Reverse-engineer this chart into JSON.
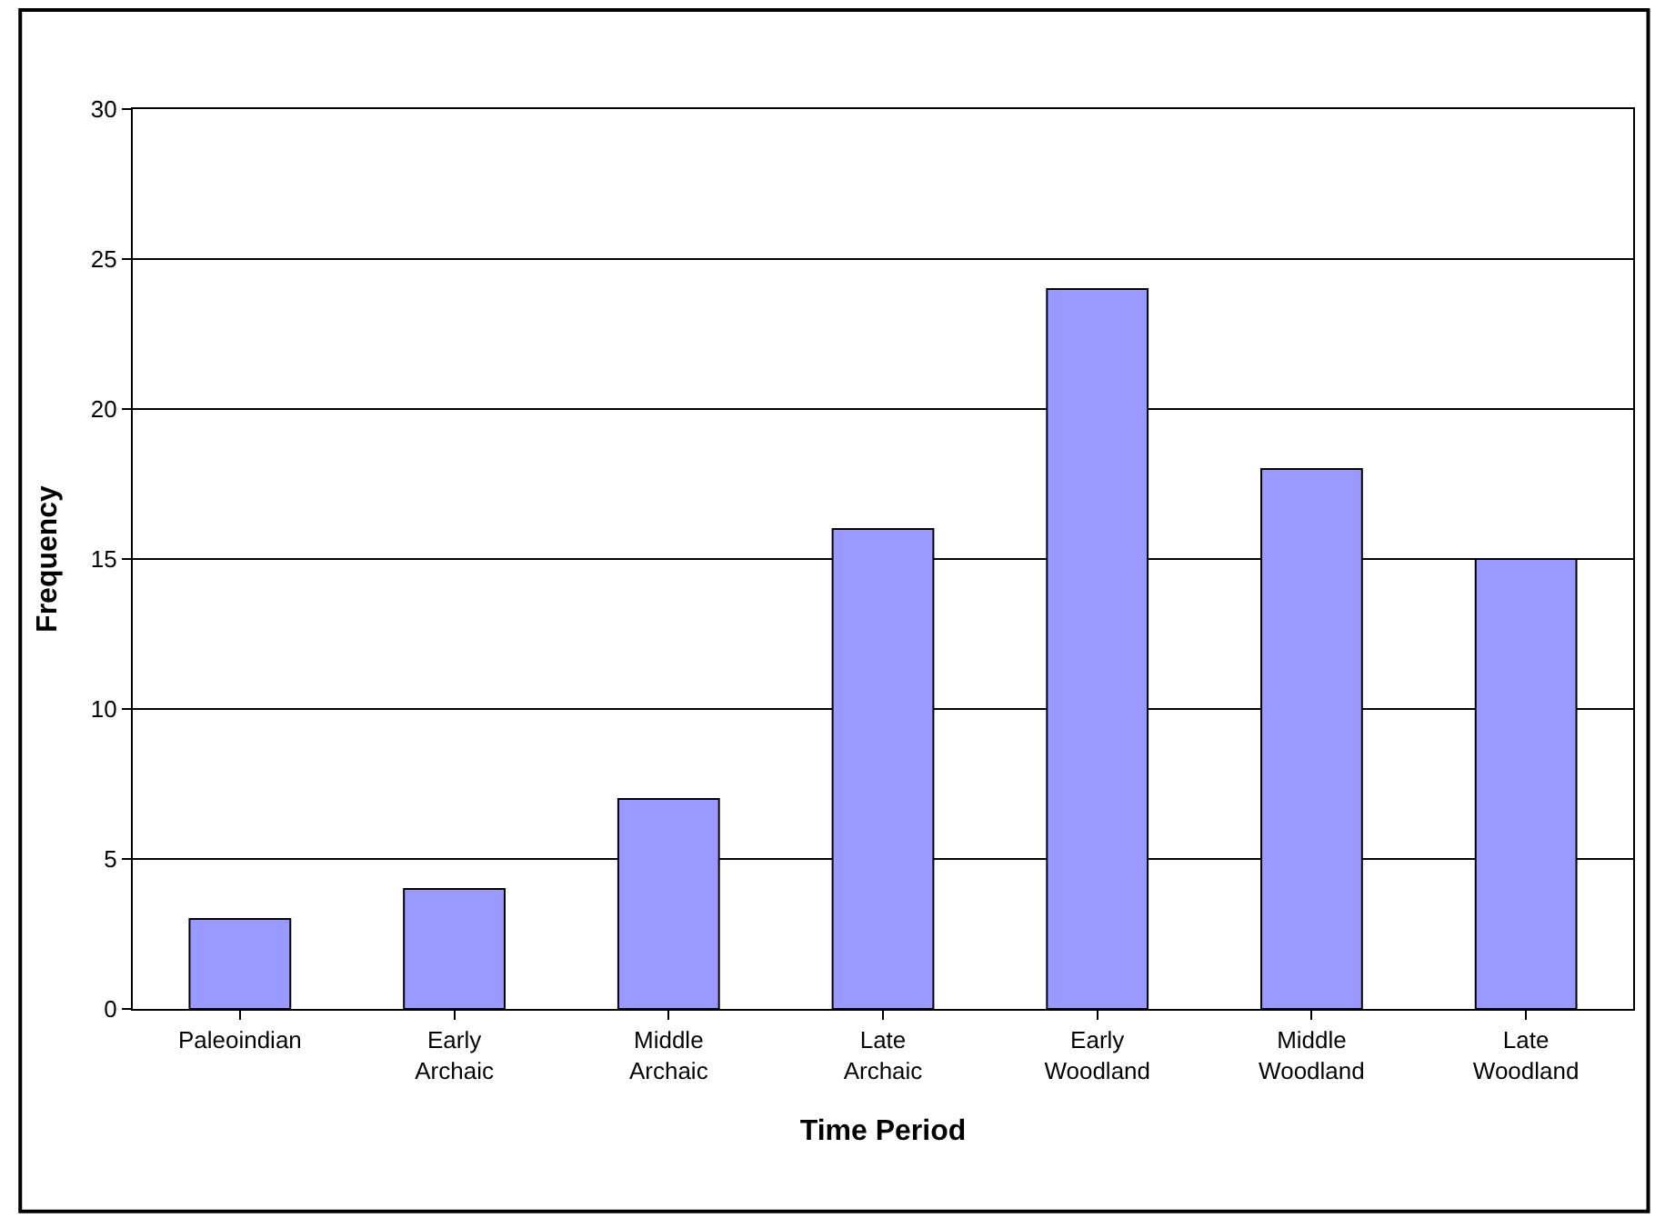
{
  "chart_data": {
    "type": "bar",
    "xlabel": "Time Period",
    "ylabel": "Frequency",
    "categories": [
      "Paleoindian",
      "Early\nArchaic",
      "Middle\nArchaic",
      "Late\nArchaic",
      "Early\nWoodland",
      "Middle\nWoodland",
      "Late\nWoodland"
    ],
    "values": [
      3,
      4,
      7,
      16,
      24,
      18,
      15
    ],
    "color": "#9999ff",
    "ylim": [
      0,
      30
    ],
    "yticks": [
      0,
      5,
      10,
      15,
      20,
      25,
      30
    ],
    "grid": "y"
  }
}
